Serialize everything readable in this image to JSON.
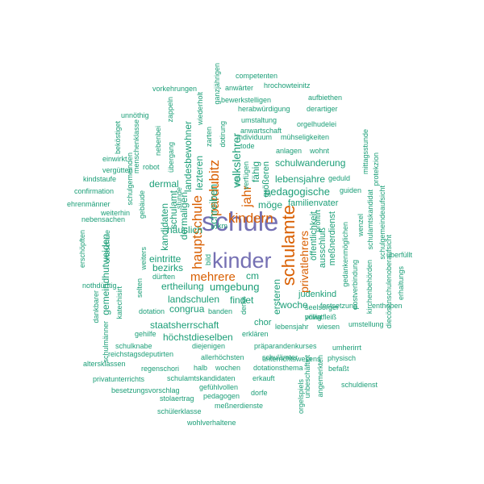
{
  "palette": {
    "top": "#7570b3",
    "high": "#d95f02",
    "mid": "#1b9e77"
  },
  "words": [
    {
      "text": "schule",
      "rank": 1
    },
    {
      "text": "kinder",
      "rank": 1
    },
    {
      "text": "schulamte",
      "rank": 2
    },
    {
      "text": "kindern",
      "rank": 2
    },
    {
      "text": "pardubitz",
      "rank": 2
    },
    {
      "text": "hauptschule",
      "rank": 2
    },
    {
      "text": "mehrere",
      "rank": 2
    },
    {
      "text": "privatlehrers",
      "rank": 2
    },
    {
      "text": "jahr",
      "rank": 2
    },
    {
      "text": "pedagogische",
      "rank": 3
    },
    {
      "text": "umgebung",
      "rank": 3
    },
    {
      "text": "landschulen",
      "rank": 3
    },
    {
      "text": "schulwanderung",
      "rank": 3
    },
    {
      "text": "volkslehrer",
      "rank": 3
    },
    {
      "text": "schreiben",
      "rank": 3
    },
    {
      "text": "häuslich",
      "rank": 3
    },
    {
      "text": "staatsherrschaft",
      "rank": 3
    },
    {
      "text": "höchstdieselben",
      "rank": 3
    },
    {
      "text": "lebensjahre",
      "rank": 3
    },
    {
      "text": "möge",
      "rank": 3
    },
    {
      "text": "familienvater",
      "rank": 3
    },
    {
      "text": "ersteren",
      "rank": 3
    },
    {
      "text": "ertheilung",
      "rank": 3
    },
    {
      "text": "congrua",
      "rank": 3
    },
    {
      "text": "findet",
      "rank": 3
    },
    {
      "text": "woche",
      "rank": 3
    },
    {
      "text": "judenkind",
      "rank": 3
    },
    {
      "text": "chor",
      "rank": 3
    },
    {
      "text": "cm",
      "rank": 3
    },
    {
      "text": "bezirks",
      "rank": 3
    },
    {
      "text": "eintritte",
      "rank": 3
    },
    {
      "text": "dermal",
      "rank": 3
    },
    {
      "text": "landesbewohner",
      "rank": 3
    },
    {
      "text": "lezteren",
      "rank": 3
    },
    {
      "text": "dermaligen",
      "rank": 3
    },
    {
      "text": "schulamt",
      "rank": 3
    },
    {
      "text": "kandidaten",
      "rank": 3
    },
    {
      "text": "gemeindhutweiden",
      "rank": 3
    },
    {
      "text": "öffentlichkeit",
      "rank": 3
    },
    {
      "text": "ausschluß",
      "rank": 3
    },
    {
      "text": "meßnerdienst",
      "rank": 3
    },
    {
      "text": "fähig",
      "rank": 3
    },
    {
      "text": "größeren",
      "rank": 3
    },
    {
      "text": "competenten",
      "rank": 4
    },
    {
      "text": "anwärter",
      "rank": 4
    },
    {
      "text": "hrochowteinitz",
      "rank": 4
    },
    {
      "text": "vorkehrungen",
      "rank": 4
    },
    {
      "text": "ganzjährigen",
      "rank": 4
    },
    {
      "text": "bewerkstelligen",
      "rank": 4
    },
    {
      "text": "aufbiethen",
      "rank": 4
    },
    {
      "text": "herabwürdigung",
      "rank": 4
    },
    {
      "text": "derartiger",
      "rank": 4
    },
    {
      "text": "umstaltung",
      "rank": 4
    },
    {
      "text": "orgelhudelei",
      "rank": 4
    },
    {
      "text": "anwartschaft",
      "rank": 4
    },
    {
      "text": "individuum",
      "rank": 4
    },
    {
      "text": "mühseligkeiten",
      "rank": 4
    },
    {
      "text": "tode",
      "rank": 4
    },
    {
      "text": "anlagen",
      "rank": 4
    },
    {
      "text": "wohnt",
      "rank": 4
    },
    {
      "text": "unnöthig",
      "rank": 4
    },
    {
      "text": "zappeln",
      "rank": 4
    },
    {
      "text": "wiederholt",
      "rank": 4
    },
    {
      "text": "dotirung",
      "rank": 4
    },
    {
      "text": "zarten",
      "rank": 4
    },
    {
      "text": "mittagsstunde",
      "rank": 4
    },
    {
      "text": "protekzion",
      "rank": 4
    },
    {
      "text": "geduld",
      "rank": 4
    },
    {
      "text": "guiden",
      "rank": 4
    },
    {
      "text": "neu",
      "rank": 4
    },
    {
      "text": "verfügen",
      "rank": 4
    },
    {
      "text": "beköstiget",
      "rank": 4
    },
    {
      "text": "menschenklasse",
      "rank": 4
    },
    {
      "text": "nebenbei",
      "rank": 4
    },
    {
      "text": "einwirkt",
      "rank": 4
    },
    {
      "text": "robot",
      "rank": 4
    },
    {
      "text": "übergang",
      "rank": 4
    },
    {
      "text": "vergütten",
      "rank": 4
    },
    {
      "text": "schulgemeinden",
      "rank": 4
    },
    {
      "text": "kindstaufe",
      "rank": 4
    },
    {
      "text": "confirmation",
      "rank": 4
    },
    {
      "text": "gebäude",
      "rank": 4
    },
    {
      "text": "stunde",
      "rank": 4
    },
    {
      "text": "ehrenmänner",
      "rank": 4
    },
    {
      "text": "weiterhin",
      "rank": 4
    },
    {
      "text": "nebensachen",
      "rank": 4
    },
    {
      "text": "km",
      "rank": 4
    },
    {
      "text": "profitirt",
      "rank": 4
    },
    {
      "text": "wenzel",
      "rank": 4
    },
    {
      "text": "schulamtskandidat",
      "rank": 4
    },
    {
      "text": "schulgemeindeaufsicht",
      "rank": 4
    },
    {
      "text": "erschöpften",
      "rank": 4
    },
    {
      "text": "ortsschule",
      "rank": 4
    },
    {
      "text": "weiters",
      "rank": 4
    },
    {
      "text": "dürften",
      "rank": 4
    },
    {
      "text": "bild",
      "rank": 4
    },
    {
      "text": "gedankenmöglichen",
      "rank": 4
    },
    {
      "text": "postverbindung",
      "rank": 4
    },
    {
      "text": "kirchenbehörden",
      "rank": 4
    },
    {
      "text": "diecösenschulenoberaufsicht",
      "rank": 4
    },
    {
      "text": "überfüllt",
      "rank": 4
    },
    {
      "text": "erhaltungs",
      "rank": 4
    },
    {
      "text": "nothdürftig",
      "rank": 4
    },
    {
      "text": "selten",
      "rank": 4
    },
    {
      "text": "dotation",
      "rank": 4
    },
    {
      "text": "derlei",
      "rank": 4
    },
    {
      "text": "festsetzung",
      "rank": 4
    },
    {
      "text": "enthoben",
      "rank": 4
    },
    {
      "text": "völlig",
      "rank": 4
    },
    {
      "text": "seelsorger",
      "rank": 4
    },
    {
      "text": "privatfleiß",
      "rank": 4
    },
    {
      "text": "lebensjahr",
      "rank": 4
    },
    {
      "text": "wiesen",
      "rank": 4
    },
    {
      "text": "umstellung",
      "rank": 4
    },
    {
      "text": "dankbarer",
      "rank": 4
    },
    {
      "text": "katechisirt",
      "rank": 4
    },
    {
      "text": "gehilfe",
      "rank": 4
    },
    {
      "text": "schulmänner",
      "rank": 4
    },
    {
      "text": "schulknabe",
      "rank": 4
    },
    {
      "text": "diejenigen",
      "rank": 4
    },
    {
      "text": "erklären",
      "rank": 4
    },
    {
      "text": "präparandenkurses",
      "rank": 4
    },
    {
      "text": "umherirrt",
      "rank": 4
    },
    {
      "text": "reichstagsdeputirten",
      "rank": 4
    },
    {
      "text": "allerhöchsten",
      "rank": 4
    },
    {
      "text": "schulämter",
      "rank": 4
    },
    {
      "text": "physisch",
      "rank": 4
    },
    {
      "text": "altersklassen",
      "rank": 4
    },
    {
      "text": "regenschori",
      "rank": 4
    },
    {
      "text": "halb",
      "rank": 4
    },
    {
      "text": "wochen",
      "rank": 4
    },
    {
      "text": "dotationsthema",
      "rank": 4
    },
    {
      "text": "befaßt",
      "rank": 4
    },
    {
      "text": "angemerkten",
      "rank": 4
    },
    {
      "text": "privatunterrichts",
      "rank": 4
    },
    {
      "text": "schulamtskandidaten",
      "rank": 4
    },
    {
      "text": "erkauft",
      "rank": 4
    },
    {
      "text": "unterrichtswesens",
      "rank": 4
    },
    {
      "text": "schuldienst",
      "rank": 4
    },
    {
      "text": "besetzungsvorschlag",
      "rank": 4
    },
    {
      "text": "gefühlvollen",
      "rank": 4
    },
    {
      "text": "dorfe",
      "rank": 4
    },
    {
      "text": "unbeschäftigt",
      "rank": 4
    },
    {
      "text": "orgelspiels",
      "rank": 4
    },
    {
      "text": "stolaertrag",
      "rank": 4
    },
    {
      "text": "pedagogen",
      "rank": 4
    },
    {
      "text": "schülerklasse",
      "rank": 4
    },
    {
      "text": "meßnerdienste",
      "rank": 4
    },
    {
      "text": "wohlverhaltene",
      "rank": 4
    },
    {
      "text": "banden",
      "rank": 4
    }
  ]
}
